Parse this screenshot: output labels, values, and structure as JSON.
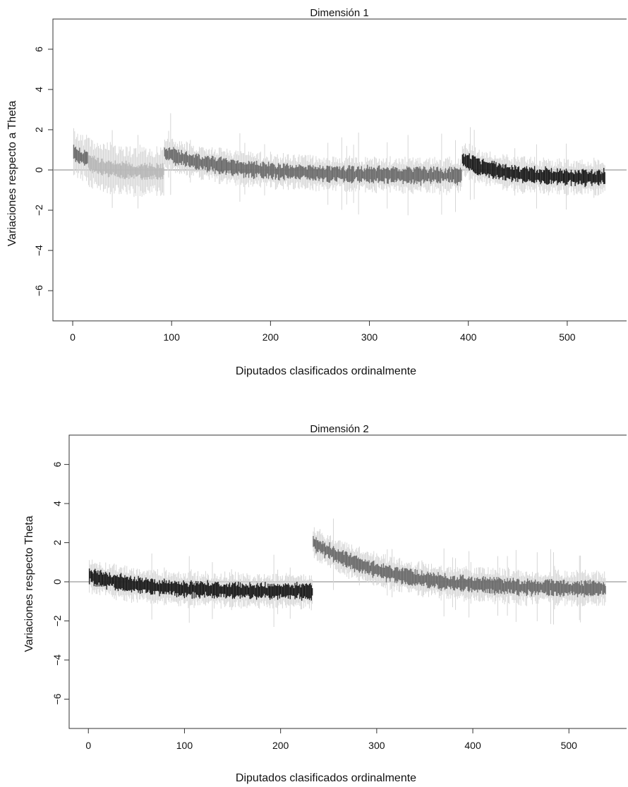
{
  "colors": {
    "background": "#ffffff",
    "axis": "#333333",
    "zero_line": "#9a9a9a",
    "group_light": "#b8b8b8",
    "group_medium": "#6e6e6e",
    "group_dark": "#1e1e1e",
    "interval": "#d6d6d6"
  },
  "chart_data": [
    {
      "type": "line",
      "title": "Dimensión 1",
      "xlabel": "Diputados clasificados ordinalmente",
      "ylabel": "Variaciones respecto a Theta",
      "xlim": [
        -20,
        560
      ],
      "ylim": [
        -7.5,
        7.5
      ],
      "xticks": [
        0,
        100,
        200,
        300,
        400,
        500
      ],
      "yticks": [
        -6,
        -4,
        -2,
        0,
        2,
        4,
        6
      ],
      "reference_line_y": 0,
      "n_points": 538,
      "series": [
        {
          "color": "group_medium",
          "x": [
            1,
            15
          ],
          "mean_start": 0.9,
          "mean_end": 0.6,
          "interval_half_width": 0.9
        },
        {
          "color": "group_light",
          "x": [
            16,
            92
          ],
          "mean_start": 0.4,
          "mean_end": -0.1,
          "interval_half_width": 1.0
        },
        {
          "color": "group_medium",
          "x": [
            93,
            393
          ],
          "mean_start": 0.8,
          "mean_end": -0.3,
          "interval_half_width": 0.7
        },
        {
          "color": "group_dark",
          "x": [
            394,
            538
          ],
          "mean_start": 0.5,
          "mean_end": -0.4,
          "interval_half_width": 0.7
        }
      ]
    },
    {
      "type": "line",
      "title": "Dimensión 2",
      "xlabel": "Diputados clasificados ordinalmente",
      "ylabel": "Variaciones respecto Theta",
      "xlim": [
        -20,
        560
      ],
      "ylim": [
        -7.5,
        7.5
      ],
      "xticks": [
        0,
        100,
        200,
        300,
        400,
        500
      ],
      "yticks": [
        -6,
        -4,
        -2,
        0,
        2,
        4,
        6
      ],
      "reference_line_y": 0,
      "n_points": 538,
      "series": [
        {
          "color": "group_dark",
          "x": [
            1,
            233
          ],
          "mean_start": 0.3,
          "mean_end": -0.5,
          "interval_half_width": 0.7
        },
        {
          "color": "group_medium",
          "x": [
            234,
            538
          ],
          "mean_start": 2.0,
          "mean_end": -0.4,
          "interval_half_width": 0.7
        }
      ]
    }
  ]
}
